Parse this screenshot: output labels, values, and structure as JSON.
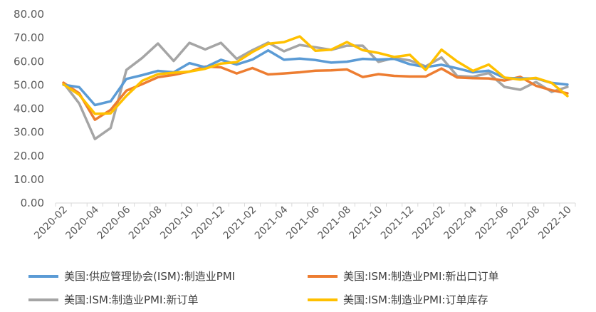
{
  "chart_data": {
    "type": "line",
    "title": "",
    "xlabel": "",
    "ylabel": "",
    "ylim": [
      0,
      80
    ],
    "y_ticks": [
      "0.00",
      "10.00",
      "20.00",
      "30.00",
      "40.00",
      "50.00",
      "60.00",
      "70.00",
      "80.00"
    ],
    "x_tick_labels": [
      "2020-02",
      "2020-04",
      "2020-06",
      "2020-08",
      "2020-10",
      "2020-12",
      "2021-02",
      "2021-04",
      "2021-06",
      "2021-08",
      "2021-10",
      "2021-12",
      "2022-02",
      "2022-04",
      "2022-06",
      "2022-08",
      "2022-10"
    ],
    "x": [
      "2020-02",
      "2020-03",
      "2020-04",
      "2020-05",
      "2020-06",
      "2020-07",
      "2020-08",
      "2020-09",
      "2020-10",
      "2020-11",
      "2020-12",
      "2021-01",
      "2021-02",
      "2021-03",
      "2021-04",
      "2021-05",
      "2021-06",
      "2021-07",
      "2021-08",
      "2021-09",
      "2021-10",
      "2021-11",
      "2021-12",
      "2022-01",
      "2022-02",
      "2022-03",
      "2022-04",
      "2022-05",
      "2022-06",
      "2022-07",
      "2022-08",
      "2022-09",
      "2022-10"
    ],
    "grid": false,
    "legend_position": "bottom",
    "series": [
      {
        "name": "美国:供应管理协会(ISM):制造业PMI",
        "color": "#5B9BD5",
        "values": [
          50.1,
          49.1,
          41.5,
          43.1,
          52.6,
          54.2,
          56.0,
          55.4,
          59.3,
          57.5,
          60.7,
          58.7,
          60.8,
          64.7,
          60.7,
          61.2,
          60.6,
          59.5,
          59.9,
          61.1,
          60.8,
          61.1,
          58.8,
          57.6,
          58.6,
          57.1,
          55.4,
          56.1,
          53.0,
          52.8,
          52.8,
          50.9,
          50.2
        ]
      },
      {
        "name": "美国:ISM:制造业PMI:新出口订单",
        "color": "#ED7D31",
        "values": [
          51.0,
          46.5,
          35.3,
          39.5,
          47.6,
          50.4,
          53.3,
          54.3,
          55.7,
          57.8,
          57.5,
          54.9,
          57.2,
          54.5,
          54.9,
          55.4,
          56.1,
          56.2,
          56.6,
          53.4,
          54.6,
          53.9,
          53.6,
          53.6,
          57.0,
          53.2,
          52.9,
          52.8,
          51.9,
          53.5,
          49.7,
          47.8,
          46.5
        ]
      },
      {
        "name": "美国:ISM:制造业PMI:新订单",
        "color": "#A5A5A5",
        "values": [
          50.9,
          42.2,
          27.1,
          31.8,
          56.4,
          61.5,
          67.6,
          60.2,
          67.9,
          65.1,
          67.9,
          61.1,
          64.8,
          68.0,
          64.3,
          67.0,
          66.0,
          64.9,
          66.7,
          66.7,
          59.8,
          61.5,
          60.4,
          57.9,
          61.7,
          53.8,
          53.5,
          55.1,
          49.2,
          48.0,
          51.3,
          47.1,
          49.2
        ]
      },
      {
        "name": "美国:ISM:制造业PMI:订单库存",
        "color": "#FFC000",
        "values": [
          50.3,
          45.9,
          37.8,
          38.0,
          45.4,
          51.8,
          54.6,
          55.2,
          55.7,
          56.9,
          59.1,
          59.7,
          64.0,
          67.5,
          68.2,
          70.6,
          64.5,
          65.0,
          68.2,
          64.8,
          63.6,
          61.9,
          62.8,
          56.4,
          65.0,
          60.0,
          56.0,
          58.7,
          53.2,
          52.3,
          53.0,
          50.9,
          45.3
        ]
      }
    ]
  }
}
